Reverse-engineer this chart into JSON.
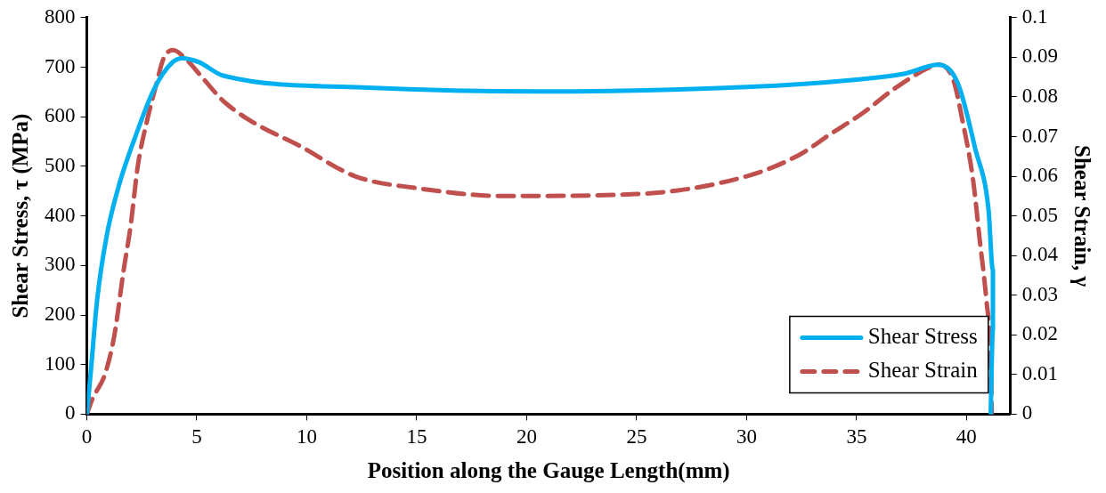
{
  "chart_data": {
    "type": "line",
    "xlabel": "Position along the Gauge Length(mm)",
    "ylabel": "Shear Stress, τ (MPa)",
    "y2label": "Shear Strain, γ",
    "xlim": [
      0,
      42
    ],
    "xticks": [
      0,
      5,
      10,
      15,
      20,
      25,
      30,
      35,
      40
    ],
    "ylim": [
      0,
      800
    ],
    "yticks": [
      0,
      100,
      200,
      300,
      400,
      500,
      600,
      700,
      800
    ],
    "y2lim": [
      0,
      0.1
    ],
    "y2ticks": [
      0,
      0.01,
      0.02,
      0.03,
      0.04,
      0.05,
      0.06,
      0.07,
      0.08,
      0.09,
      0.1
    ],
    "grid": false,
    "legend": "bottom right",
    "marker": "none",
    "series": [
      {
        "name": "Shear Stress",
        "color": "#00b0f0",
        "line_style": "solid",
        "x": [
          0,
          0.17,
          0.47,
          0.9,
          1.47,
          2.2,
          3.06,
          3.9,
          4.35,
          5.1,
          6.2,
          12.5,
          20.5,
          30,
          35,
          37.2,
          38.7,
          39.6,
          40.4,
          41.0,
          41.2,
          41.2,
          41.1
        ],
        "values": [
          0,
          80,
          231,
          359,
          463,
          559,
          656,
          710,
          718,
          710,
          683,
          659,
          651,
          660,
          675,
          687,
          705,
          668,
          535,
          413,
          291,
          171,
          0
        ]
      },
      {
        "name": "Shear Strain",
        "color": "#c0504d",
        "line_style": "dashed",
        "axis": "y2",
        "x": [
          0,
          0.26,
          0.82,
          1.25,
          1.68,
          1.98,
          2.33,
          2.76,
          3.15,
          3.49,
          3.92,
          4.48,
          5.34,
          6.2,
          7.5,
          9.66,
          12.2,
          15,
          19,
          25,
          30,
          32.4,
          33.8,
          35.3,
          36.7,
          38.4,
          38.7,
          39.4,
          39.8,
          40.3,
          40.6,
          40.9,
          41.1,
          41.15
        ],
        "values": [
          0,
          0.0039,
          0.01,
          0.0198,
          0.0365,
          0.047,
          0.063,
          0.0745,
          0.083,
          0.0897,
          0.0918,
          0.0897,
          0.0843,
          0.079,
          0.0738,
          0.0677,
          0.06,
          0.057,
          0.055,
          0.0555,
          0.06,
          0.0654,
          0.0706,
          0.076,
          0.082,
          0.0877,
          0.0882,
          0.0843,
          0.0745,
          0.059,
          0.044,
          0.029,
          0.0137,
          0
        ]
      }
    ]
  }
}
